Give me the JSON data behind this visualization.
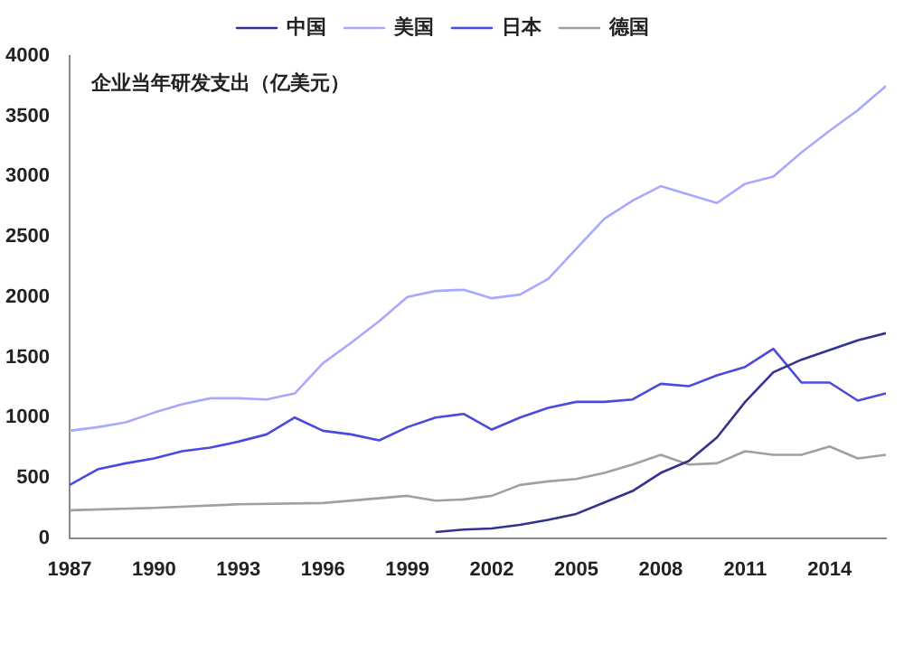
{
  "chart_data": {
    "type": "line",
    "annotations": [
      "企业当年研发支出（亿美元）"
    ],
    "xlim": [
      1987,
      2016
    ],
    "xticks": [
      1987,
      1990,
      1993,
      1996,
      1999,
      2002,
      2005,
      2008,
      2011,
      2014
    ],
    "ylim": [
      0,
      4000
    ],
    "yticks": [
      0,
      500,
      1000,
      1500,
      2000,
      2500,
      3000,
      3500,
      4000
    ],
    "grid": false,
    "legend": "top",
    "marker": "none",
    "line_style": "solid",
    "series": [
      {
        "name": "中国",
        "color": "#33338f",
        "x": [
          2000,
          2001,
          2002,
          2003,
          2004,
          2005,
          2006,
          2007,
          2008,
          2009,
          2010,
          2011,
          2012,
          2013,
          2014,
          2015,
          2016
        ],
        "values": [
          50,
          70,
          80,
          110,
          150,
          200,
          295,
          390,
          540,
          640,
          835,
          1130,
          1375,
          1480,
          1560,
          1640,
          1700
        ]
      },
      {
        "name": "美国",
        "color": "#a8a8ff",
        "x": [
          1987,
          1988,
          1989,
          1990,
          1991,
          1992,
          1993,
          1994,
          1995,
          1996,
          1997,
          1998,
          1999,
          2000,
          2001,
          2002,
          2003,
          2004,
          2005,
          2006,
          2007,
          2008,
          2009,
          2010,
          2011,
          2012,
          2013,
          2014,
          2015,
          2016
        ],
        "values": [
          890,
          920,
          960,
          1040,
          1110,
          1160,
          1160,
          1150,
          1200,
          1450,
          1620,
          1800,
          2000,
          2050,
          2060,
          1990,
          2020,
          2150,
          2400,
          2650,
          2800,
          2920,
          2850,
          2780,
          2940,
          3000,
          3200,
          3380,
          3550,
          3750
        ]
      },
      {
        "name": "日本",
        "color": "#4a4adf",
        "x": [
          1987,
          1988,
          1989,
          1990,
          1991,
          1992,
          1993,
          1994,
          1995,
          1996,
          1997,
          1998,
          1999,
          2000,
          2001,
          2002,
          2003,
          2004,
          2005,
          2006,
          2007,
          2008,
          2009,
          2010,
          2011,
          2012,
          2013,
          2014,
          2015,
          2016
        ],
        "values": [
          440,
          570,
          620,
          660,
          720,
          750,
          800,
          860,
          1000,
          890,
          860,
          810,
          920,
          1000,
          1030,
          900,
          1000,
          1080,
          1130,
          1130,
          1150,
          1280,
          1260,
          1350,
          1420,
          1570,
          1290,
          1290,
          1140,
          1200
        ]
      },
      {
        "name": "德国",
        "color": "#a0a0a0",
        "x": [
          1987,
          1990,
          1993,
          1996,
          1999,
          2000,
          2001,
          2002,
          2003,
          2004,
          2005,
          2006,
          2007,
          2008,
          2009,
          2010,
          2011,
          2012,
          2013,
          2014,
          2015,
          2016
        ],
        "values": [
          230,
          250,
          280,
          290,
          350,
          310,
          320,
          350,
          440,
          470,
          490,
          540,
          610,
          690,
          610,
          620,
          720,
          690,
          690,
          760,
          660,
          690
        ]
      }
    ]
  }
}
